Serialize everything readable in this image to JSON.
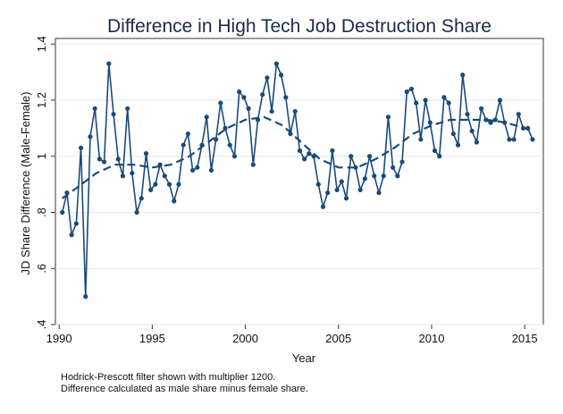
{
  "chart_data": {
    "type": "line",
    "title": "Difference in High Tech Job Destruction Share",
    "xlabel": "Year",
    "ylabel": "JD Share Difference (Male-Female)",
    "xlim": [
      1989.8,
      2016.0
    ],
    "ylim": [
      0.4,
      1.42
    ],
    "x_ticks": [
      1990,
      1995,
      2000,
      2005,
      2010,
      2015
    ],
    "y_ticks": [
      0.4,
      0.6,
      0.8,
      1.0,
      1.2,
      1.4
    ],
    "y_tick_labels": [
      ".4",
      ".6",
      ".8",
      "1",
      "1.2",
      "1.4"
    ],
    "grid": "horizontal",
    "colors": {
      "series": "#1a4a7a",
      "title": "#1a2b48"
    },
    "notes": [
      "Hodrick-Prescott filter shown with multiplier 1200.",
      "Difference calculated as male share minus female share."
    ],
    "series": [
      {
        "style": "solid-with-markers",
        "points": [
          [
            1990.17,
            0.8
          ],
          [
            1990.42,
            0.87
          ],
          [
            1990.67,
            0.72
          ],
          [
            1990.92,
            0.76
          ],
          [
            1991.17,
            1.03
          ],
          [
            1991.42,
            0.5
          ],
          [
            1991.67,
            1.07
          ],
          [
            1991.92,
            1.17
          ],
          [
            1992.17,
            0.99
          ],
          [
            1992.42,
            0.98
          ],
          [
            1992.67,
            1.33
          ],
          [
            1992.92,
            1.15
          ],
          [
            1993.17,
            0.99
          ],
          [
            1993.42,
            0.93
          ],
          [
            1993.67,
            1.17
          ],
          [
            1993.92,
            0.94
          ],
          [
            1994.17,
            0.8
          ],
          [
            1994.42,
            0.85
          ],
          [
            1994.67,
            1.01
          ],
          [
            1994.92,
            0.88
          ],
          [
            1995.17,
            0.9
          ],
          [
            1995.42,
            0.97
          ],
          [
            1995.67,
            0.93
          ],
          [
            1995.92,
            0.9
          ],
          [
            1996.17,
            0.84
          ],
          [
            1996.42,
            0.9
          ],
          [
            1996.67,
            1.04
          ],
          [
            1996.92,
            1.08
          ],
          [
            1997.17,
            0.95
          ],
          [
            1997.42,
            0.96
          ],
          [
            1997.67,
            1.04
          ],
          [
            1997.92,
            1.14
          ],
          [
            1998.17,
            0.95
          ],
          [
            1998.42,
            1.06
          ],
          [
            1998.67,
            1.19
          ],
          [
            1998.92,
            1.1
          ],
          [
            1999.17,
            1.04
          ],
          [
            1999.42,
            1.0
          ],
          [
            1999.67,
            1.23
          ],
          [
            1999.92,
            1.21
          ],
          [
            2000.17,
            1.17
          ],
          [
            2000.42,
            0.97
          ],
          [
            2000.67,
            1.13
          ],
          [
            2000.92,
            1.22
          ],
          [
            2001.17,
            1.28
          ],
          [
            2001.42,
            1.16
          ],
          [
            2001.67,
            1.33
          ],
          [
            2001.92,
            1.29
          ],
          [
            2002.17,
            1.21
          ],
          [
            2002.42,
            1.08
          ],
          [
            2002.67,
            1.16
          ],
          [
            2002.92,
            1.02
          ],
          [
            2003.17,
            0.99
          ],
          [
            2003.42,
            1.01
          ],
          [
            2003.67,
            1.0
          ],
          [
            2003.92,
            0.9
          ],
          [
            2004.17,
            0.82
          ],
          [
            2004.42,
            0.87
          ],
          [
            2004.67,
            1.02
          ],
          [
            2004.92,
            0.88
          ],
          [
            2005.17,
            0.91
          ],
          [
            2005.42,
            0.85
          ],
          [
            2005.67,
            1.0
          ],
          [
            2005.92,
            0.96
          ],
          [
            2006.17,
            0.88
          ],
          [
            2006.42,
            0.92
          ],
          [
            2006.67,
            1.0
          ],
          [
            2006.92,
            0.93
          ],
          [
            2007.17,
            0.87
          ],
          [
            2007.42,
            0.93
          ],
          [
            2007.67,
            1.14
          ],
          [
            2007.92,
            0.96
          ],
          [
            2008.17,
            0.93
          ],
          [
            2008.42,
            0.98
          ],
          [
            2008.67,
            1.23
          ],
          [
            2008.92,
            1.24
          ],
          [
            2009.17,
            1.19
          ],
          [
            2009.42,
            1.06
          ],
          [
            2009.67,
            1.2
          ],
          [
            2009.92,
            1.12
          ],
          [
            2010.17,
            1.02
          ],
          [
            2010.42,
            1.0
          ],
          [
            2010.67,
            1.21
          ],
          [
            2010.92,
            1.19
          ],
          [
            2011.17,
            1.08
          ],
          [
            2011.42,
            1.04
          ],
          [
            2011.67,
            1.29
          ],
          [
            2011.92,
            1.15
          ],
          [
            2012.17,
            1.09
          ],
          [
            2012.42,
            1.05
          ],
          [
            2012.67,
            1.17
          ],
          [
            2012.92,
            1.13
          ],
          [
            2013.17,
            1.12
          ],
          [
            2013.42,
            1.13
          ],
          [
            2013.67,
            1.2
          ],
          [
            2013.92,
            1.12
          ],
          [
            2014.17,
            1.06
          ],
          [
            2014.42,
            1.06
          ],
          [
            2014.67,
            1.15
          ],
          [
            2014.92,
            1.1
          ],
          [
            2015.17,
            1.1
          ],
          [
            2015.42,
            1.06
          ]
        ]
      },
      {
        "style": "dashed",
        "points": [
          [
            1990.17,
            0.85
          ],
          [
            1991.0,
            0.89
          ],
          [
            1992.0,
            0.94
          ],
          [
            1993.0,
            0.97
          ],
          [
            1994.0,
            0.97
          ],
          [
            1995.0,
            0.96
          ],
          [
            1996.0,
            0.97
          ],
          [
            1997.0,
            1.0
          ],
          [
            1998.0,
            1.05
          ],
          [
            1999.0,
            1.1
          ],
          [
            2000.0,
            1.13
          ],
          [
            2001.0,
            1.14
          ],
          [
            2002.0,
            1.11
          ],
          [
            2003.0,
            1.05
          ],
          [
            2004.0,
            0.99
          ],
          [
            2005.0,
            0.96
          ],
          [
            2006.0,
            0.96
          ],
          [
            2007.0,
            0.99
          ],
          [
            2008.0,
            1.03
          ],
          [
            2009.0,
            1.08
          ],
          [
            2010.0,
            1.11
          ],
          [
            2011.0,
            1.13
          ],
          [
            2012.0,
            1.13
          ],
          [
            2013.0,
            1.13
          ],
          [
            2014.0,
            1.12
          ],
          [
            2015.0,
            1.1
          ],
          [
            2015.42,
            1.09
          ]
        ]
      }
    ]
  }
}
